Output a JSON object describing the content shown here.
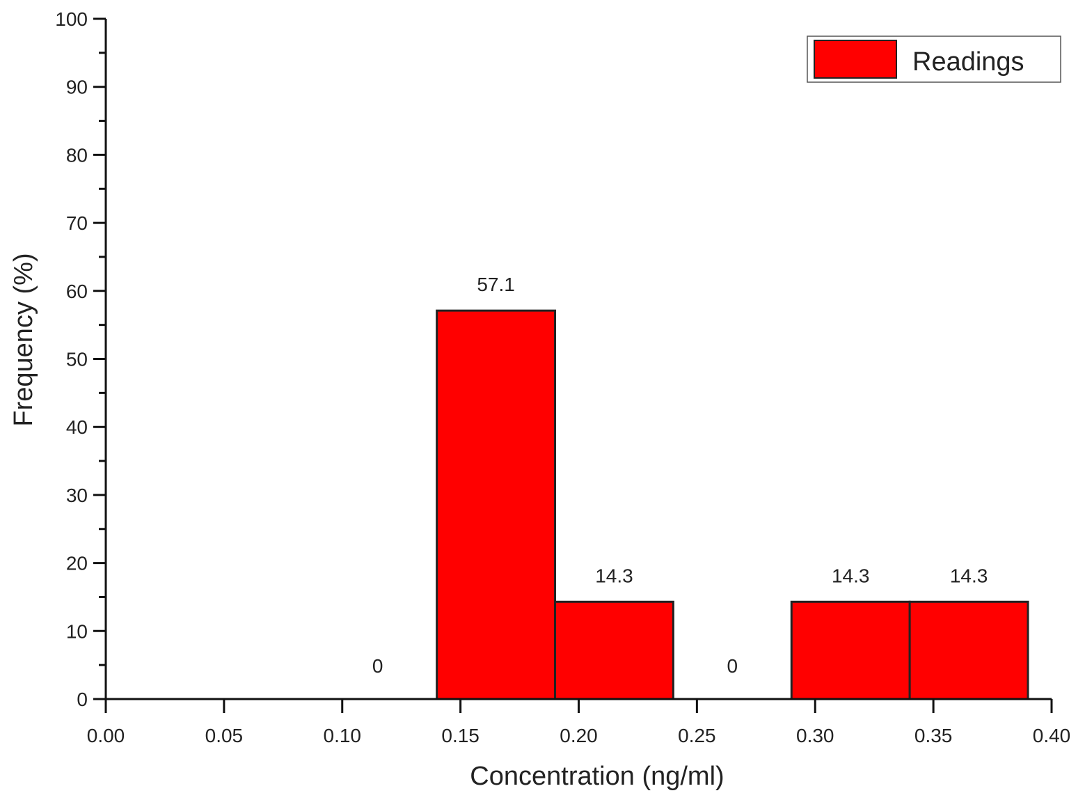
{
  "chart_data": {
    "type": "bar",
    "xlabel": "Concentration (ng/ml)",
    "ylabel": "Frequency (%)",
    "xlim": [
      0.0,
      0.4
    ],
    "ylim": [
      0,
      100
    ],
    "x_ticks": [
      "0.00",
      "0.05",
      "0.10",
      "0.15",
      "0.20",
      "0.25",
      "0.30",
      "0.35",
      "0.40"
    ],
    "y_ticks": [
      "0",
      "10",
      "20",
      "30",
      "40",
      "50",
      "60",
      "70",
      "80",
      "90",
      "100"
    ],
    "grid": false,
    "legend": {
      "position": "top-right",
      "entries": [
        "Readings"
      ]
    },
    "series": [
      {
        "name": "Readings",
        "color": "#ff0000",
        "bins": [
          {
            "from": 0.09,
            "to": 0.14,
            "value": 0,
            "label": "0"
          },
          {
            "from": 0.14,
            "to": 0.19,
            "value": 57.1,
            "label": "57.1"
          },
          {
            "from": 0.19,
            "to": 0.24,
            "value": 14.3,
            "label": "14.3"
          },
          {
            "from": 0.24,
            "to": 0.29,
            "value": 0,
            "label": "0"
          },
          {
            "from": 0.29,
            "to": 0.34,
            "value": 14.3,
            "label": "14.3"
          },
          {
            "from": 0.34,
            "to": 0.39,
            "value": 14.3,
            "label": "14.3"
          }
        ]
      }
    ]
  }
}
